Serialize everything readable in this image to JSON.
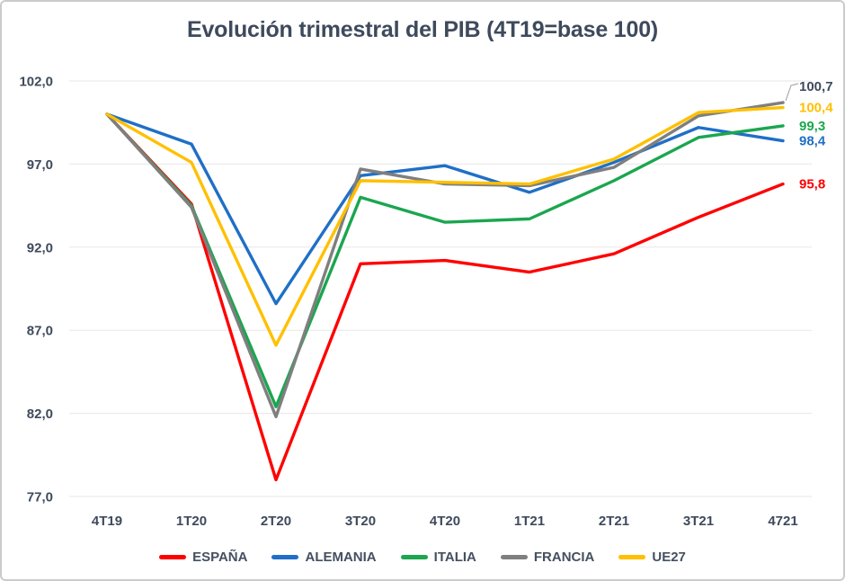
{
  "chart_data": {
    "type": "line",
    "title": "Evolución trimestral del PIB (4T19=base 100)",
    "categories": [
      "4T19",
      "1T20",
      "2T20",
      "3T20",
      "4T20",
      "1T21",
      "2T21",
      "3T21",
      "4721"
    ],
    "series": [
      {
        "name": "ESPAÑA",
        "color": "#FF0000",
        "values": [
          100,
          94.6,
          78.0,
          91.0,
          91.2,
          90.5,
          91.6,
          93.8,
          95.8
        ],
        "end_label": "95,8"
      },
      {
        "name": "ALEMANIA",
        "color": "#1F6FC6",
        "values": [
          100,
          98.2,
          88.6,
          96.3,
          96.9,
          95.3,
          97.1,
          99.2,
          98.4
        ],
        "end_label": "98,4"
      },
      {
        "name": "ITALIA",
        "color": "#1BA64F",
        "values": [
          100,
          94.5,
          82.4,
          95.0,
          93.5,
          93.7,
          96.0,
          98.6,
          99.3
        ],
        "end_label": "99,3"
      },
      {
        "name": "FRANCIA",
        "color": "#7F7F7F",
        "values": [
          100,
          94.4,
          81.8,
          96.7,
          95.8,
          95.7,
          96.8,
          99.9,
          100.7
        ],
        "end_label": "100,7",
        "end_label_color": "#3E4A5C",
        "callout": true
      },
      {
        "name": "UE27",
        "color": "#FFC000",
        "values": [
          100,
          97.1,
          86.1,
          96.0,
          95.9,
          95.8,
          97.3,
          100.1,
          100.4
        ],
        "end_label": "100,4"
      }
    ],
    "y_axis": {
      "min": 77,
      "max": 102,
      "step": 5,
      "tick_values": [
        102,
        97,
        92,
        87,
        82,
        77
      ],
      "tick_labels": [
        "102,0",
        "97,0",
        "92,0",
        "87,0",
        "82,0",
        "77,0"
      ]
    },
    "xlabel": "",
    "ylabel": "",
    "grid": true,
    "legend_position": "bottom"
  },
  "styles": {
    "title_color": "#3E4A5C",
    "axis_label_color": "#3E4A5C",
    "legend_label_color": "#445060",
    "grid_color": "#E7E7E7",
    "callout_color": "#ADADAD",
    "border_color": "#CBCBCB",
    "background": "#FFFFFF"
  }
}
